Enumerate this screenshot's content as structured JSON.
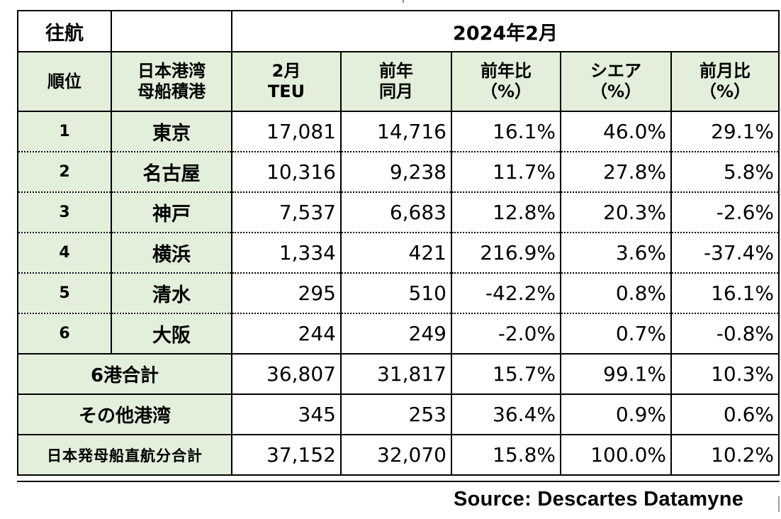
{
  "title": {
    "direction": "往航",
    "period": "2024年2月"
  },
  "headers": {
    "rank": "順位",
    "port_line1": "日本港湾",
    "port_line2": "母船積港",
    "teu_line1": "2月",
    "teu_line2": "TEU",
    "prev_line1": "前年",
    "prev_line2": "同月",
    "yoy_line1": "前年比",
    "yoy_line2": "（%）",
    "share_line1": "シエア",
    "share_line2": "（%）",
    "mom_line1": "前月比",
    "mom_line2": "（%）"
  },
  "rows": [
    {
      "rank": "1",
      "port": "東京",
      "teu": "17,081",
      "prev": "14,716",
      "yoy": "16.1%",
      "share": "46.0%",
      "mom": "29.1%"
    },
    {
      "rank": "2",
      "port": "名古屋",
      "teu": "10,316",
      "prev": "9,238",
      "yoy": "11.7%",
      "share": "27.8%",
      "mom": "5.8%"
    },
    {
      "rank": "3",
      "port": "神戸",
      "teu": "7,537",
      "prev": "6,683",
      "yoy": "12.8%",
      "share": "20.3%",
      "mom": "-2.6%"
    },
    {
      "rank": "4",
      "port": "横浜",
      "teu": "1,334",
      "prev": "421",
      "yoy": "216.9%",
      "share": "3.6%",
      "mom": "-37.4%"
    },
    {
      "rank": "5",
      "port": "清水",
      "teu": "295",
      "prev": "510",
      "yoy": "-42.2%",
      "share": "0.8%",
      "mom": "16.1%"
    },
    {
      "rank": "6",
      "port": "大阪",
      "teu": "244",
      "prev": "249",
      "yoy": "-2.0%",
      "share": "0.7%",
      "mom": "-0.8%"
    }
  ],
  "totals": [
    {
      "label": "6港合計",
      "teu": "36,807",
      "prev": "31,817",
      "yoy": "15.7%",
      "share": "99.1%",
      "mom": "10.3%"
    },
    {
      "label": "その他港湾",
      "teu": "345",
      "prev": "253",
      "yoy": "36.4%",
      "share": "0.9%",
      "mom": "0.6%"
    },
    {
      "label": "日本発母船直航分合計",
      "teu": "37,152",
      "prev": "32,070",
      "yoy": "15.8%",
      "share": "100.0%",
      "mom": "10.2%"
    }
  ],
  "source": "Source:  Descartes Datamyne",
  "colors": {
    "label_fill": "#e3efda",
    "border": "#000000"
  }
}
